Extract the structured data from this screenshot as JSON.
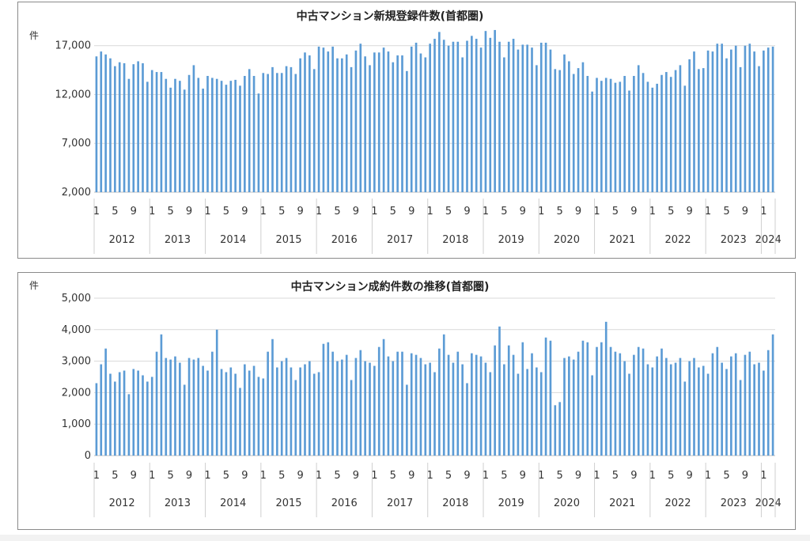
{
  "charts_meta": {
    "bar_color": "#5b9bd5",
    "grid_color": "#d9d9d9",
    "text_color": "#333333"
  },
  "chart_data": [
    {
      "type": "bar",
      "title": "中古マンション新規登録件数(首都圏)",
      "ylabel": "件",
      "ylim": [
        2000,
        19000
      ],
      "yticks": [
        2000,
        7000,
        12000,
        17000
      ],
      "ytick_labels": [
        "2,000",
        "7,000",
        "12,000",
        "17,000"
      ],
      "grid": true,
      "month_tick_labels": [
        "1",
        "5",
        "9",
        "1",
        "5",
        "9",
        "1",
        "5",
        "9",
        "1",
        "5",
        "9",
        "1",
        "5",
        "9",
        "1",
        "5",
        "9",
        "1",
        "5",
        "9",
        "1",
        "5",
        "9",
        "1",
        "5",
        "9",
        "1",
        "5",
        "9",
        "1",
        "5",
        "9",
        "1",
        "5",
        "9",
        "1"
      ],
      "year_labels": [
        "2012",
        "2013",
        "2014",
        "2015",
        "2016",
        "2017",
        "2018",
        "2019",
        "2020",
        "2021",
        "2022",
        "2023",
        "2024"
      ],
      "start": "2012-01",
      "values": [
        15900,
        16400,
        16100,
        15700,
        14900,
        15300,
        15200,
        13600,
        15100,
        15400,
        15200,
        13300,
        14500,
        14300,
        14300,
        13600,
        12700,
        13600,
        13400,
        12500,
        14000,
        15000,
        13700,
        12600,
        13900,
        13700,
        13600,
        13400,
        13000,
        13400,
        13500,
        12900,
        13900,
        14600,
        13900,
        12100,
        14200,
        14100,
        14800,
        14200,
        14200,
        14900,
        14800,
        14100,
        15700,
        16300,
        16000,
        14600,
        16900,
        16800,
        16400,
        16900,
        15700,
        15700,
        16100,
        14800,
        16500,
        17200,
        15900,
        15000,
        16300,
        16300,
        16800,
        16400,
        15300,
        16000,
        16000,
        14400,
        16900,
        17300,
        16200,
        15800,
        17200,
        17700,
        18400,
        17600,
        17000,
        17400,
        17400,
        15800,
        17500,
        18000,
        17700,
        16800,
        18500,
        17800,
        18600,
        17400,
        15800,
        17400,
        17700,
        16600,
        17100,
        17100,
        16800,
        15000,
        17300,
        17300,
        16600,
        14600,
        14500,
        16100,
        15400,
        14100,
        14700,
        15300,
        13900,
        12300,
        13700,
        13400,
        13700,
        13600,
        13200,
        13300,
        13900,
        12400,
        13900,
        15000,
        14200,
        13300,
        12700,
        13100,
        14000,
        14300,
        13800,
        14500,
        15000,
        12900,
        15600,
        16400,
        14600,
        14700,
        16500,
        16400,
        17200,
        17200,
        15700,
        16600,
        17000,
        14800,
        17000,
        17200,
        16400,
        14900,
        16500,
        16800,
        16900
      ]
    },
    {
      "type": "bar",
      "title": "中古マンション成約件数の推移(首都圏)",
      "ylabel": "件",
      "ylim": [
        0,
        5000
      ],
      "yticks": [
        0,
        1000,
        2000,
        3000,
        4000,
        5000
      ],
      "ytick_labels": [
        "0",
        "1,000",
        "2,000",
        "3,000",
        "4,000",
        "5,000"
      ],
      "grid": true,
      "month_tick_labels": [
        "1",
        "5",
        "9",
        "1",
        "5",
        "9",
        "1",
        "5",
        "9",
        "1",
        "5",
        "9",
        "1",
        "5",
        "9",
        "1",
        "5",
        "9",
        "1",
        "5",
        "9",
        "1",
        "5",
        "9",
        "1",
        "5",
        "9",
        "1",
        "5",
        "9",
        "1",
        "5",
        "9",
        "1",
        "5",
        "9",
        "1"
      ],
      "year_labels": [
        "2012",
        "2013",
        "2014",
        "2015",
        "2016",
        "2017",
        "2018",
        "2019",
        "2020",
        "2021",
        "2022",
        "2023",
        "2024"
      ],
      "start": "2012-01",
      "values": [
        2300,
        2900,
        3400,
        2600,
        2350,
        2650,
        2700,
        1950,
        2750,
        2700,
        2550,
        2350,
        2500,
        3300,
        3850,
        3100,
        3050,
        3150,
        2950,
        2250,
        3100,
        3050,
        3100,
        2850,
        2700,
        3300,
        4000,
        2750,
        2650,
        2800,
        2600,
        2150,
        2900,
        2700,
        2850,
        2500,
        2450,
        3300,
        3700,
        2800,
        3000,
        3100,
        2800,
        2400,
        2800,
        2900,
        3000,
        2600,
        2650,
        3550,
        3600,
        3300,
        3000,
        3050,
        3200,
        2400,
        3100,
        3350,
        3000,
        2950,
        2850,
        3450,
        3700,
        3150,
        3000,
        3300,
        3300,
        2250,
        3250,
        3200,
        3100,
        2900,
        2950,
        2650,
        3400,
        3850,
        3200,
        2950,
        3300,
        2900,
        2300,
        3250,
        3200,
        3150,
        2950,
        2650,
        3500,
        4100,
        2900,
        3500,
        3200,
        2600,
        3600,
        2750,
        3250,
        2800,
        2650,
        3750,
        3650,
        1600,
        1700,
        3100,
        3150,
        3050,
        3300,
        3650,
        3600,
        2550,
        3450,
        3600,
        4250,
        3450,
        3300,
        3250,
        3000,
        2600,
        3200,
        3450,
        3400,
        2900,
        2800,
        3150,
        3400,
        3100,
        2900,
        2950,
        3100,
        2350,
        3000,
        3100,
        2800,
        2850,
        2600,
        3250,
        3450,
        2950,
        2750,
        3150,
        3250,
        2400,
        3200,
        3300,
        2900,
        2950,
        2700,
        3350,
        3850
      ]
    }
  ]
}
